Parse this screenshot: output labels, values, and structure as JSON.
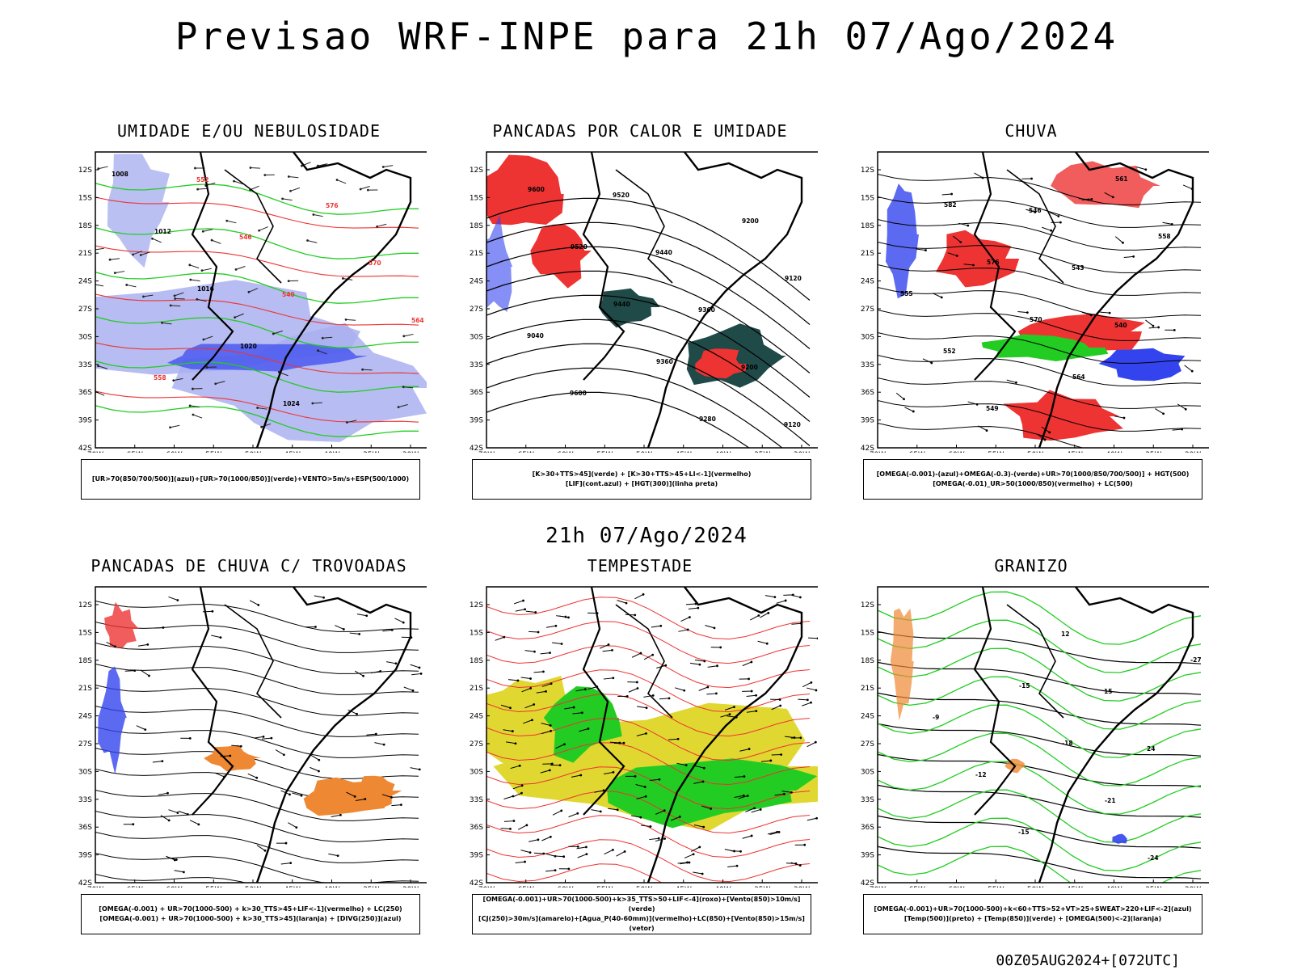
{
  "title": "Previsao WRF-INPE  para 21h 07/Ago/2024",
  "middle_label": "21h 07/Ago/2024",
  "footer": "00Z05AUG2024+[072UTC]",
  "axes": {
    "lat_labels": [
      "12S",
      "15S",
      "18S",
      "21S",
      "24S",
      "27S",
      "30S",
      "33S",
      "36S",
      "39S",
      "42S"
    ],
    "lon_labels": [
      "70W",
      "65W",
      "60W",
      "55W",
      "50W",
      "45W",
      "40W",
      "35W",
      "30W"
    ]
  },
  "colors": {
    "blue": "#3344ee",
    "lightblue": "#aab0f0",
    "green": "#22cc22",
    "red": "#ee3333",
    "orange": "#ee8833",
    "yellow": "#e0d830",
    "darkteal": "#1f4a48",
    "black": "#000000"
  },
  "panels": [
    {
      "title": "UMIDADE E/OU NEBULOSIDADE",
      "legend": [
        "[UR>70(850/700/500)](azul)+[UR>70(1000/850)](verde)+VENTO>5m/s+ESP(500/1000)"
      ],
      "contour_labels": [
        "1008",
        "1012",
        "1016",
        "1020",
        "1024",
        "576",
        "570",
        "564",
        "558",
        "552",
        "546",
        "540"
      ]
    },
    {
      "title": "PANCADAS POR CALOR E UMIDADE",
      "legend": [
        "[K>30+TTS>45](verde) + [K>30+TTS>45+LI<-1](vermelho)",
        "[LIF](cont.azul) + [HGT(300)](linha preta)"
      ],
      "contour_labels": [
        "9600",
        "9520",
        "9440",
        "9360",
        "9280",
        "9200",
        "9120",
        "9040",
        "9600",
        "9520",
        "9440",
        "9360",
        "9200",
        "9120"
      ]
    },
    {
      "title": "CHUVA",
      "legend": [
        "[OMEGA(-0.001)-(azul)+OMEGA(-0.3)-(verde)+UR>70(1000/850/700/500)] + HGT(500)",
        "[OMEGA(-0.01)_UR>50(1000/850)(vermelho) + LC(500)"
      ],
      "contour_labels": [
        "582",
        "576",
        "570",
        "564",
        "561",
        "558",
        "555",
        "552",
        "549",
        "546",
        "543",
        "540"
      ]
    },
    {
      "title": "PANCADAS DE CHUVA C/ TROVOADAS",
      "legend": [
        "[OMEGA(-0.001) + UR>70(1000-500) + k>30_TTS>45+LIF<-1](vermelho) + LC(250)",
        "[OMEGA(-0.001) + UR>70(1000-500) + k>30_TTS>45](laranja) + [DIVG(250)](azul)"
      ],
      "contour_labels": []
    },
    {
      "title": "TEMPESTADE",
      "legend": [
        "[OMEGA(-0.001)+UR>70(1000-500)+k>35_TTS>50+LIF<-4](roxo)+[Vento(850)>10m/s](verde)",
        "[CJ(250)>30m/s](amarelo)+[Agua_P(40-60mm)](vermelho)+LC(850)+[Vento(850)>15m/s](vetor)"
      ],
      "contour_labels": []
    },
    {
      "title": "GRANIZO",
      "legend": [
        "[OMEGA(-0.001)+UR>70(1000-500)+k<60+TTS>52+VT>25+SWEAT>220+LIF<-2](azul)",
        "[Temp(500)](preto) + [Temp(850)](verde) + [OMEGA(500)<-2](laranja)"
      ],
      "contour_labels": [
        "-15",
        "-18",
        "-21",
        "-24",
        "-27",
        "-9",
        "-12",
        "-15",
        "12",
        "15",
        "24"
      ]
    }
  ]
}
